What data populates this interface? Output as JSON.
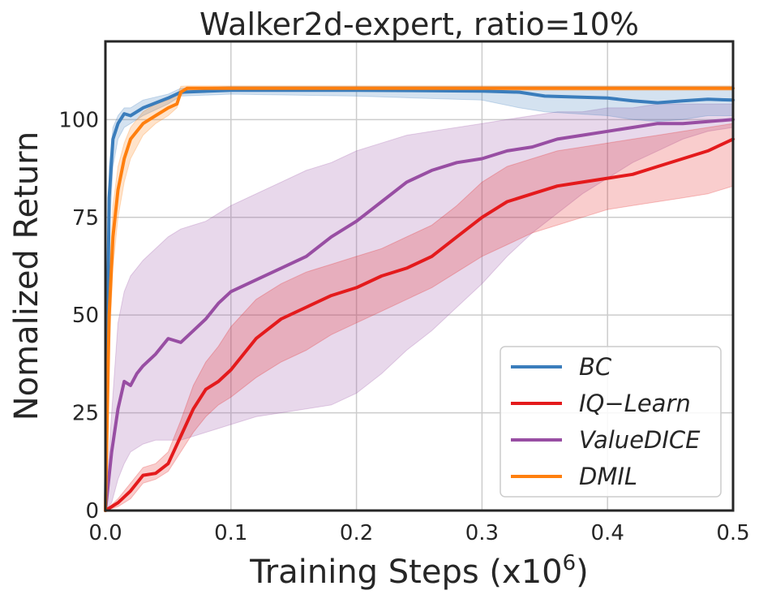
{
  "chart_data": {
    "type": "line",
    "title": "Walker2d-expert, ratio=10%",
    "xlabel_prefix": "Training Steps (x10",
    "xlabel_exp": "6",
    "xlabel_suffix": ")",
    "ylabel": "Nomalized Return",
    "xlim": [
      0.0,
      0.5
    ],
    "ylim": [
      0,
      120
    ],
    "x_ticks": [
      0.0,
      0.1,
      0.2,
      0.3,
      0.4,
      0.5
    ],
    "x_tick_labels": [
      "0.0",
      "0.1",
      "0.2",
      "0.3",
      "0.4",
      "0.5"
    ],
    "y_ticks": [
      0,
      25,
      50,
      75,
      100
    ],
    "y_tick_labels": [
      "0",
      "25",
      "50",
      "75",
      "100"
    ],
    "grid": true,
    "legend_position": "bottom-right",
    "series": [
      {
        "name": "BC",
        "color": "#3a7dbc",
        "x": [
          0.0,
          0.003,
          0.006,
          0.01,
          0.015,
          0.02,
          0.03,
          0.05,
          0.06,
          0.1,
          0.2,
          0.3,
          0.33,
          0.35,
          0.4,
          0.42,
          0.44,
          0.46,
          0.48,
          0.5
        ],
        "y": [
          0,
          80,
          95,
          99,
          101.5,
          101,
          103,
          105.5,
          107,
          107.5,
          107.5,
          107.3,
          107,
          106,
          105.5,
          104.8,
          104.3,
          104.8,
          105.2,
          105
        ],
        "lower": [
          0,
          70,
          88,
          95,
          98,
          99,
          101,
          104,
          106,
          106.5,
          106,
          105,
          103,
          102,
          101,
          100,
          99.5,
          100,
          101,
          101
        ],
        "upper": [
          0,
          88,
          98,
          101,
          103,
          103,
          105,
          106.5,
          108,
          108.5,
          108.5,
          108.5,
          108.5,
          108.5,
          108.5,
          108.5,
          108.5,
          108.5,
          108.5,
          108.5
        ]
      },
      {
        "name": "IQ−Learn",
        "color": "#e41a1c",
        "x": [
          0.0,
          0.01,
          0.02,
          0.03,
          0.04,
          0.05,
          0.06,
          0.07,
          0.08,
          0.09,
          0.1,
          0.12,
          0.14,
          0.16,
          0.18,
          0.2,
          0.22,
          0.24,
          0.26,
          0.28,
          0.3,
          0.32,
          0.34,
          0.36,
          0.38,
          0.4,
          0.42,
          0.44,
          0.46,
          0.48,
          0.5
        ],
        "y": [
          0,
          2,
          5,
          9,
          9.5,
          12,
          19,
          26,
          31,
          33,
          36,
          44,
          49,
          52,
          55,
          57,
          60,
          62,
          65,
          70,
          75,
          79,
          81,
          83,
          84,
          85,
          86,
          88,
          90,
          92,
          95
        ],
        "lower": [
          0,
          1,
          3,
          7,
          8,
          10,
          15,
          20,
          24,
          27,
          29,
          34,
          38,
          41,
          45,
          48,
          51,
          54,
          57,
          61,
          65,
          68,
          71,
          73,
          75,
          77,
          78,
          79,
          80,
          81,
          83
        ],
        "upper": [
          0,
          3,
          7,
          11,
          12,
          15,
          23,
          32,
          38,
          42,
          47,
          54,
          58,
          61,
          63,
          65,
          67,
          70,
          73,
          78,
          84,
          88,
          90,
          92,
          93,
          94,
          95,
          96,
          97,
          98,
          99
        ]
      },
      {
        "name": "ValueDICE",
        "color": "#984ea3",
        "x": [
          0.0,
          0.005,
          0.01,
          0.015,
          0.02,
          0.025,
          0.03,
          0.04,
          0.05,
          0.06,
          0.07,
          0.08,
          0.09,
          0.1,
          0.12,
          0.14,
          0.16,
          0.18,
          0.2,
          0.22,
          0.24,
          0.26,
          0.28,
          0.3,
          0.32,
          0.34,
          0.36,
          0.38,
          0.4,
          0.42,
          0.44,
          0.46,
          0.48,
          0.5
        ],
        "y": [
          0,
          15,
          26,
          33,
          32,
          35,
          37,
          40,
          44,
          43,
          46,
          49,
          53,
          56,
          59,
          62,
          65,
          70,
          74,
          79,
          84,
          87,
          89,
          90,
          92,
          93,
          95,
          96,
          97,
          98,
          99,
          99,
          99.5,
          100
        ],
        "lower": [
          0,
          2,
          8,
          12,
          15,
          16,
          17,
          18,
          18,
          18,
          19,
          20,
          21,
          22,
          24,
          25,
          26,
          27,
          30,
          35,
          41,
          46,
          52,
          58,
          65,
          71,
          76,
          81,
          85,
          89,
          92,
          95,
          97,
          98
        ],
        "upper": [
          0,
          25,
          48,
          56,
          60,
          62,
          64,
          67,
          70,
          72,
          73,
          74,
          76,
          78,
          81,
          84,
          87,
          89,
          92,
          94,
          96,
          97,
          98,
          99,
          100,
          101,
          102,
          102,
          103,
          103,
          104,
          104,
          104,
          104
        ]
      },
      {
        "name": "DMIL",
        "color": "#ff7f0e",
        "x": [
          0.0,
          0.003,
          0.006,
          0.01,
          0.015,
          0.02,
          0.03,
          0.04,
          0.05,
          0.057,
          0.06,
          0.065,
          0.1,
          0.2,
          0.3,
          0.4,
          0.5
        ],
        "y": [
          0,
          50,
          70,
          82,
          90,
          95,
          99,
          101,
          103,
          104,
          107,
          108,
          108,
          108,
          108,
          108,
          108
        ],
        "lower": [
          0,
          40,
          62,
          75,
          84,
          90,
          96,
          99,
          101,
          103,
          106,
          107.5,
          107.5,
          107.5,
          107.5,
          107.5,
          107.5
        ],
        "upper": [
          0,
          60,
          78,
          88,
          94,
          98,
          102,
          104,
          105,
          106,
          108.5,
          108.6,
          108.6,
          108.6,
          108.6,
          108.6,
          108.6
        ]
      }
    ]
  }
}
